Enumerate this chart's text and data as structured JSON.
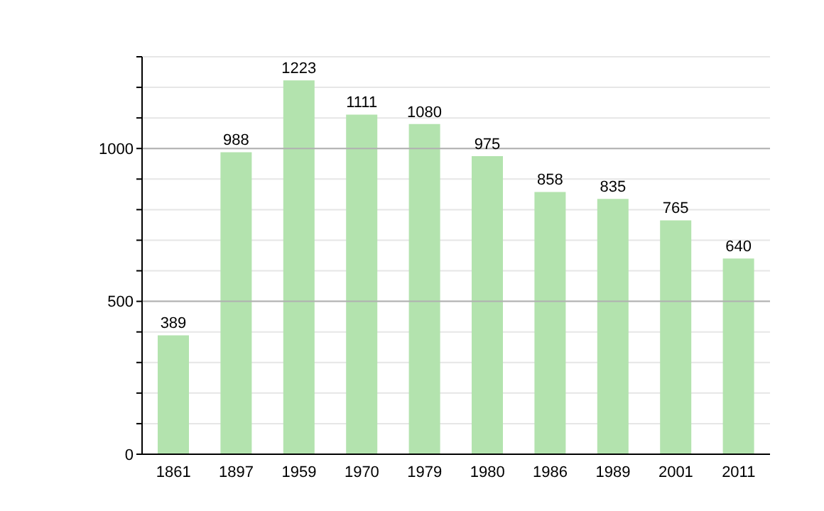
{
  "chart_data": {
    "type": "bar",
    "categories": [
      "1861",
      "1897",
      "1959",
      "1970",
      "1979",
      "1980",
      "1986",
      "1989",
      "2001",
      "2011"
    ],
    "values": [
      389,
      988,
      1223,
      1111,
      1080,
      975,
      858,
      835,
      765,
      640
    ],
    "color": "#b3e3ae",
    "ylim": [
      0,
      1300
    ],
    "yticks": [
      0,
      {
        "value": 100,
        "label": null
      },
      {
        "value": 200,
        "label": null
      },
      {
        "value": 300,
        "label": null
      },
      {
        "value": 400,
        "label": null
      },
      500,
      {
        "value": 600,
        "label": null
      },
      {
        "value": 700,
        "label": null
      },
      {
        "value": 800,
        "label": null
      },
      {
        "value": 900,
        "label": null
      },
      1000,
      {
        "value": 1100,
        "label": null
      },
      {
        "value": 1200,
        "label": null
      },
      {
        "value": 1300,
        "label": null
      }
    ],
    "grid": true,
    "data_labels": true
  }
}
